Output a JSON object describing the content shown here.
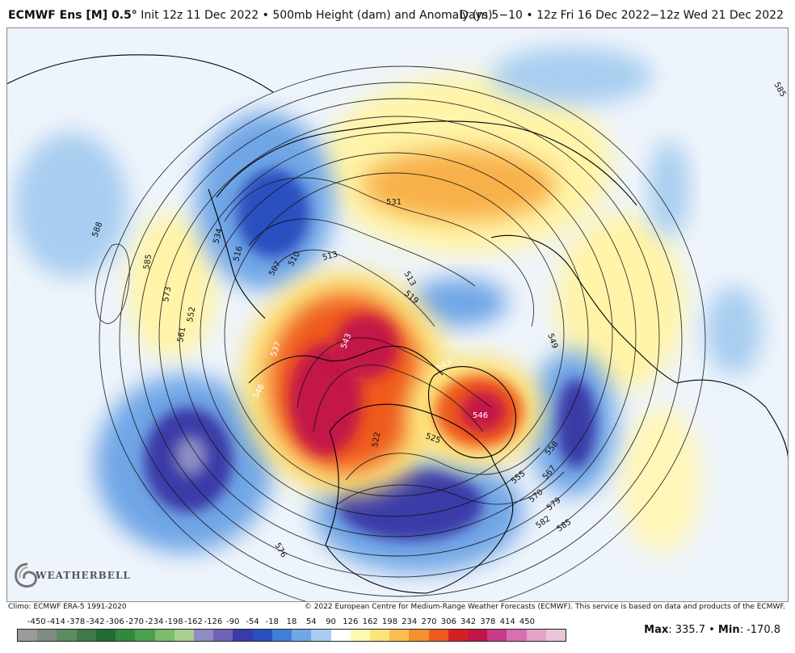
{
  "header": {
    "model": "ECMWF Ens [M] 0.5",
    "degree": "°",
    "init": "Init 12z 11 Dec 2022",
    "bullet": "•",
    "field": "500mb Height (dam) and Anomaly (m)",
    "period_prefix": "Days 5−10",
    "period": "12z Fri 16 Dec 2022−12z Wed 21 Dec 2022"
  },
  "footer": {
    "climo": "Climo: ECMWF ERA-5 1991-2020",
    "copyright": "© 2022 European Centre for Medium-Range Weather Forecasts (ECMWF). This service is based on data and products of the ECMWF.",
    "max_label": "Max",
    "max_value": ": 335.7",
    "min_label": "Min",
    "min_value": ": -170.8",
    "separator": " • "
  },
  "logo": {
    "text": "WEATHERBELL"
  },
  "colorbar": {
    "labels": [
      "-450",
      "-414",
      "-378",
      "-342",
      "-306",
      "-270",
      "-234",
      "-198",
      "-162",
      "-126",
      "-90",
      "-54",
      "-18",
      "18",
      "54",
      "90",
      "126",
      "162",
      "198",
      "234",
      "270",
      "306",
      "342",
      "378",
      "414",
      "450"
    ],
    "colors": [
      "#9a9a9a",
      "#7f8c80",
      "#5e8a62",
      "#3e7a47",
      "#236b33",
      "#2f8a3d",
      "#4aa04d",
      "#7cbc6a",
      "#a9cf8e",
      "#8e8cc2",
      "#6f64b5",
      "#3a3aa8",
      "#2a4fc0",
      "#3f7fd6",
      "#6fa6e6",
      "#a7cdf0",
      "#ffffff",
      "#fff8b0",
      "#fde37a",
      "#fbbe4e",
      "#f7902e",
      "#ee5a1e",
      "#d42020",
      "#c3144a",
      "#c83a8a",
      "#d96fb0",
      "#e3a2c9",
      "#e6c6d8"
    ]
  },
  "map": {
    "background": "#eef4fb",
    "contour_labels": [
      {
        "text": "585"
      },
      {
        "text": "588"
      },
      {
        "text": "585"
      },
      {
        "text": "573"
      },
      {
        "text": "561"
      },
      {
        "text": "552"
      },
      {
        "text": "534"
      },
      {
        "text": "516"
      },
      {
        "text": "507"
      },
      {
        "text": "510"
      },
      {
        "text": "513"
      },
      {
        "text": "531"
      },
      {
        "text": "513"
      },
      {
        "text": "519"
      },
      {
        "text": "537"
      },
      {
        "text": "543"
      },
      {
        "text": "546"
      },
      {
        "text": "546"
      },
      {
        "text": "543"
      },
      {
        "text": "522"
      },
      {
        "text": "525"
      },
      {
        "text": "558"
      },
      {
        "text": "567"
      },
      {
        "text": "555"
      },
      {
        "text": "570"
      },
      {
        "text": "579"
      },
      {
        "text": "582"
      },
      {
        "text": "585"
      },
      {
        "text": "576"
      },
      {
        "text": "549"
      }
    ]
  }
}
